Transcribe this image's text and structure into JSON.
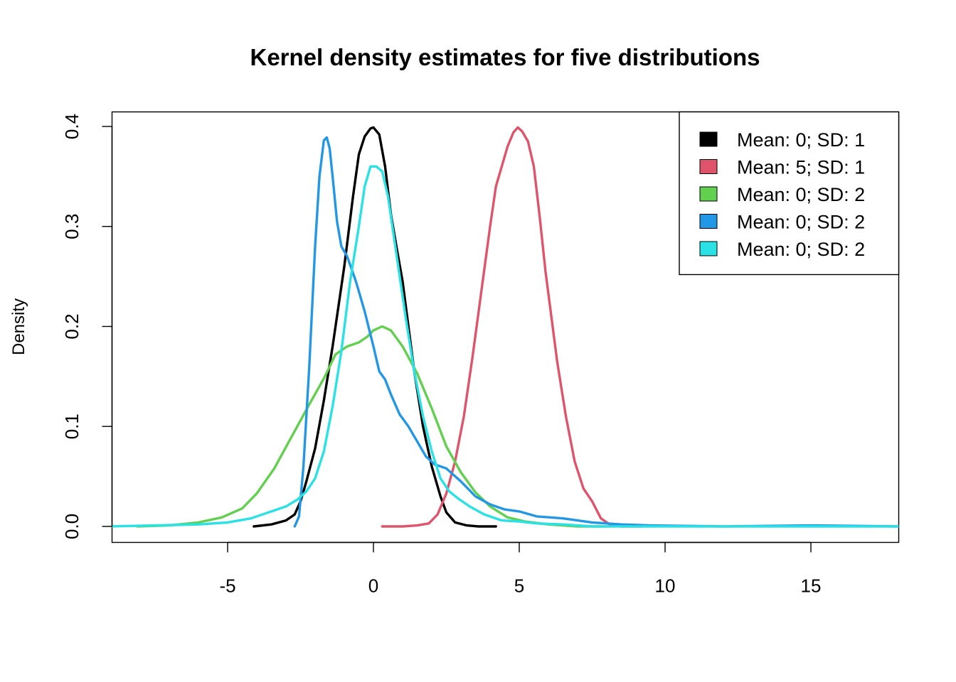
{
  "chart_data": {
    "type": "line",
    "title": "Kernel density estimates for five distributions",
    "xlabel": "",
    "ylabel": "Density",
    "xlim": [
      -9,
      18
    ],
    "ylim": [
      0,
      0.415
    ],
    "x_ticks": [
      -5,
      0,
      5,
      10,
      15
    ],
    "y_ticks": [
      0.0,
      0.1,
      0.2,
      0.3,
      0.4
    ],
    "x_tick_labels": [
      "-5",
      "0",
      "5",
      "10",
      "15"
    ],
    "y_tick_labels": [
      "0.0",
      "0.1",
      "0.2",
      "0.3",
      "0.4"
    ],
    "grid": false,
    "legend_position": "top-right",
    "series": [
      {
        "name": "Mean: 0; SD: 1",
        "color": "#000000",
        "x": [
          -4.1,
          -3.5,
          -3.0,
          -2.7,
          -2.5,
          -2.3,
          -2.0,
          -1.7,
          -1.4,
          -1.0,
          -0.7,
          -0.5,
          -0.3,
          -0.1,
          0.0,
          0.2,
          0.4,
          0.6,
          0.8,
          1.0,
          1.2,
          1.4,
          1.7,
          2.0,
          2.3,
          2.5,
          2.8,
          3.2,
          3.6,
          4.2
        ],
        "y": [
          0.0,
          0.002,
          0.006,
          0.012,
          0.025,
          0.045,
          0.078,
          0.126,
          0.18,
          0.26,
          0.33,
          0.372,
          0.39,
          0.398,
          0.399,
          0.392,
          0.36,
          0.312,
          0.278,
          0.245,
          0.2,
          0.155,
          0.1,
          0.06,
          0.03,
          0.014,
          0.004,
          0.001,
          0.0,
          0.0
        ]
      },
      {
        "name": "Mean: 5; SD: 1",
        "color": "#DF536B",
        "x": [
          0.3,
          1.0,
          1.5,
          1.9,
          2.2,
          2.5,
          2.8,
          3.1,
          3.4,
          3.7,
          4.0,
          4.2,
          4.4,
          4.6,
          4.8,
          4.95,
          5.1,
          5.3,
          5.5,
          5.7,
          5.9,
          6.1,
          6.3,
          6.6,
          6.9,
          7.2,
          7.5,
          7.8,
          8.1,
          8.5,
          9.2
        ],
        "y": [
          0.0,
          0.0,
          0.001,
          0.003,
          0.012,
          0.033,
          0.065,
          0.11,
          0.17,
          0.235,
          0.3,
          0.34,
          0.36,
          0.38,
          0.394,
          0.399,
          0.395,
          0.385,
          0.36,
          0.31,
          0.255,
          0.21,
          0.165,
          0.11,
          0.065,
          0.038,
          0.025,
          0.008,
          0.002,
          0.0,
          0.0
        ]
      },
      {
        "name": "Mean: 0; SD: 2",
        "color": "#61D04F",
        "x": [
          -8.1,
          -7.0,
          -6.0,
          -5.2,
          -4.5,
          -4.0,
          -3.4,
          -2.8,
          -2.2,
          -1.7,
          -1.3,
          -0.9,
          -0.5,
          -0.2,
          0.0,
          0.3,
          0.6,
          1.0,
          1.5,
          2.0,
          2.5,
          3.0,
          3.5,
          4.0,
          4.6,
          5.2,
          6.0,
          7.0,
          8.0
        ],
        "y": [
          0.0,
          0.001,
          0.004,
          0.009,
          0.018,
          0.033,
          0.058,
          0.09,
          0.122,
          0.148,
          0.172,
          0.18,
          0.184,
          0.19,
          0.196,
          0.2,
          0.196,
          0.18,
          0.153,
          0.118,
          0.08,
          0.054,
          0.034,
          0.02,
          0.009,
          0.005,
          0.002,
          0.0,
          0.0
        ]
      },
      {
        "name": "Mean: 0; SD: 2",
        "color": "#2297E6",
        "x": [
          -2.7,
          -2.55,
          -2.4,
          -2.2,
          -2.0,
          -1.85,
          -1.7,
          -1.6,
          -1.5,
          -1.4,
          -1.25,
          -1.1,
          -0.9,
          -0.6,
          -0.3,
          0.0,
          0.2,
          0.4,
          0.6,
          0.9,
          1.2,
          1.5,
          1.8,
          2.1,
          2.5,
          3.0,
          3.5,
          4.0,
          4.5,
          5.0,
          5.6,
          6.5,
          7.5,
          8.5,
          9.5,
          12.0,
          15.0,
          18.0
        ],
        "y": [
          0.0,
          0.01,
          0.06,
          0.16,
          0.28,
          0.35,
          0.386,
          0.389,
          0.378,
          0.35,
          0.305,
          0.28,
          0.27,
          0.245,
          0.215,
          0.18,
          0.155,
          0.147,
          0.132,
          0.112,
          0.1,
          0.085,
          0.07,
          0.062,
          0.058,
          0.045,
          0.03,
          0.022,
          0.017,
          0.015,
          0.01,
          0.008,
          0.004,
          0.002,
          0.001,
          0.0,
          0.001,
          0.0
        ]
      },
      {
        "name": "Mean: 0; SD: 2",
        "color": "#28E2E5",
        "x": [
          -9.0,
          -7.5,
          -6.0,
          -5.0,
          -4.2,
          -3.6,
          -3.0,
          -2.6,
          -2.3,
          -2.0,
          -1.7,
          -1.4,
          -1.1,
          -0.8,
          -0.5,
          -0.3,
          -0.1,
          0.1,
          0.3,
          0.5,
          0.8,
          1.1,
          1.4,
          1.7,
          2.0,
          2.3,
          2.6,
          2.9,
          3.3,
          3.8,
          4.4,
          5.0,
          5.6,
          6.5,
          7.5,
          9.0,
          12.0,
          15.0,
          18.0
        ],
        "y": [
          0.0,
          0.001,
          0.002,
          0.004,
          0.008,
          0.014,
          0.02,
          0.027,
          0.035,
          0.048,
          0.075,
          0.12,
          0.175,
          0.245,
          0.3,
          0.34,
          0.36,
          0.36,
          0.355,
          0.33,
          0.27,
          0.21,
          0.155,
          0.11,
          0.075,
          0.048,
          0.035,
          0.028,
          0.02,
          0.012,
          0.006,
          0.005,
          0.003,
          0.002,
          0.0,
          0.0,
          0.0,
          0.0,
          0.0
        ]
      }
    ]
  }
}
